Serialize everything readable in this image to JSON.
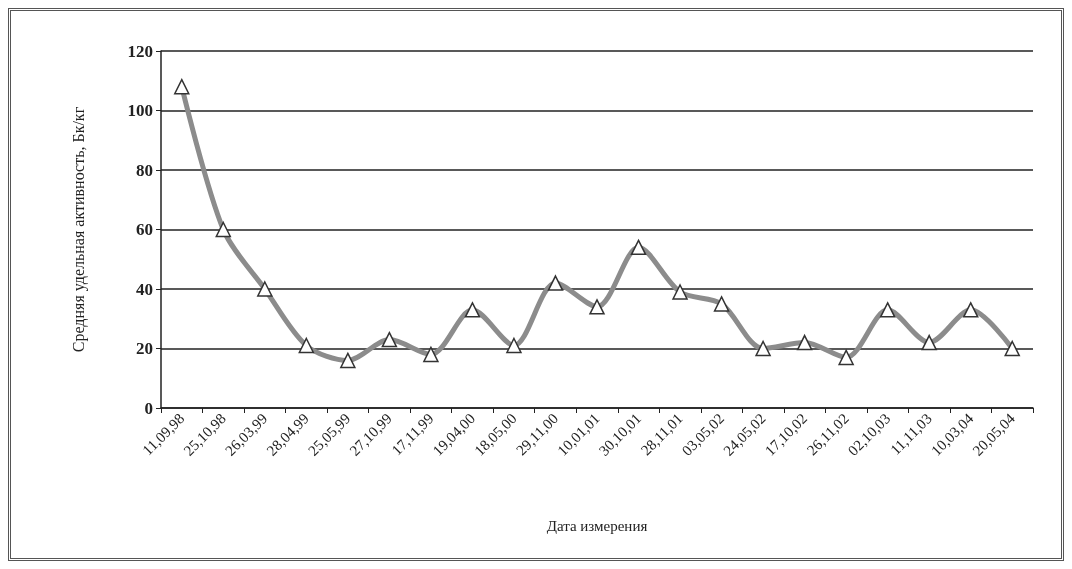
{
  "chart_data": {
    "type": "line",
    "xlabel": "Дата измерения",
    "ylabel": "Средняя удельная активность, Бк/кг",
    "categories": [
      "11,09,98",
      "25,10,98",
      "26,03,99",
      "28,04,99",
      "25,05,99",
      "27,10,99",
      "17,11,99",
      "19,04,00",
      "18,05,00",
      "29,11,00",
      "10,01,01",
      "30,10,01",
      "28,11,01",
      "03,05,02",
      "24,05,02",
      "17,10,02",
      "26,11,02",
      "02,10,03",
      "11,11,03",
      "10,03,04",
      "20,05,04"
    ],
    "series": [
      {
        "color": "#8c8c8c",
        "values": [
          108,
          60,
          40,
          21,
          16,
          23,
          18,
          33,
          21,
          42,
          34,
          54,
          39,
          35,
          20,
          22,
          17,
          33,
          22,
          33,
          20
        ]
      }
    ],
    "ylim": [
      0,
      120
    ],
    "yticks": [
      0,
      20,
      40,
      60,
      80,
      100,
      120
    ],
    "grid": "y",
    "marker": "triangle",
    "line_style": "solid"
  }
}
